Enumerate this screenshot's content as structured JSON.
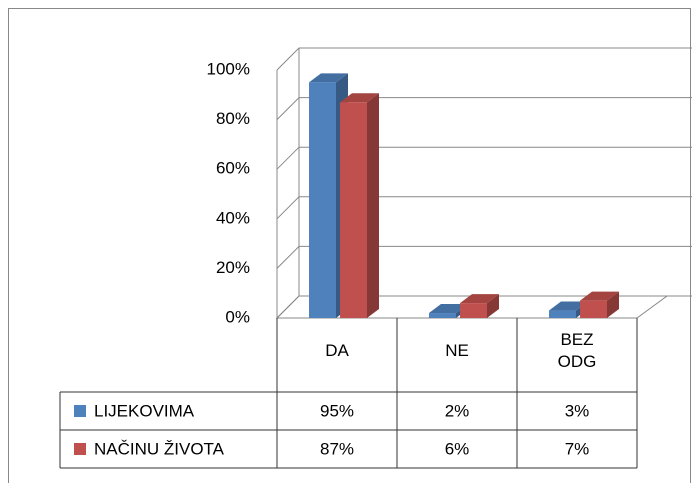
{
  "chart_data": {
    "type": "bar3d",
    "categories": [
      "DA",
      "NE",
      "BEZ ODG"
    ],
    "series": [
      {
        "name": "LIJEKOVIMA",
        "color": "#4f81bd",
        "values": [
          95,
          2,
          3
        ],
        "value_labels": [
          "95%",
          "2%",
          "3%"
        ]
      },
      {
        "name": "NAČINU ŽIVOTA",
        "color": "#c0504d",
        "values": [
          87,
          6,
          7
        ],
        "value_labels": [
          "87%",
          "6%",
          "7%"
        ]
      }
    ],
    "ylim": [
      0,
      100
    ],
    "yticks": [
      {
        "value": 0,
        "label": "0%"
      },
      {
        "value": 20,
        "label": "20%"
      },
      {
        "value": 40,
        "label": "40%"
      },
      {
        "value": 60,
        "label": "60%"
      },
      {
        "value": 80,
        "label": "80%"
      },
      {
        "value": 100,
        "label": "100%"
      }
    ],
    "grid": true
  }
}
